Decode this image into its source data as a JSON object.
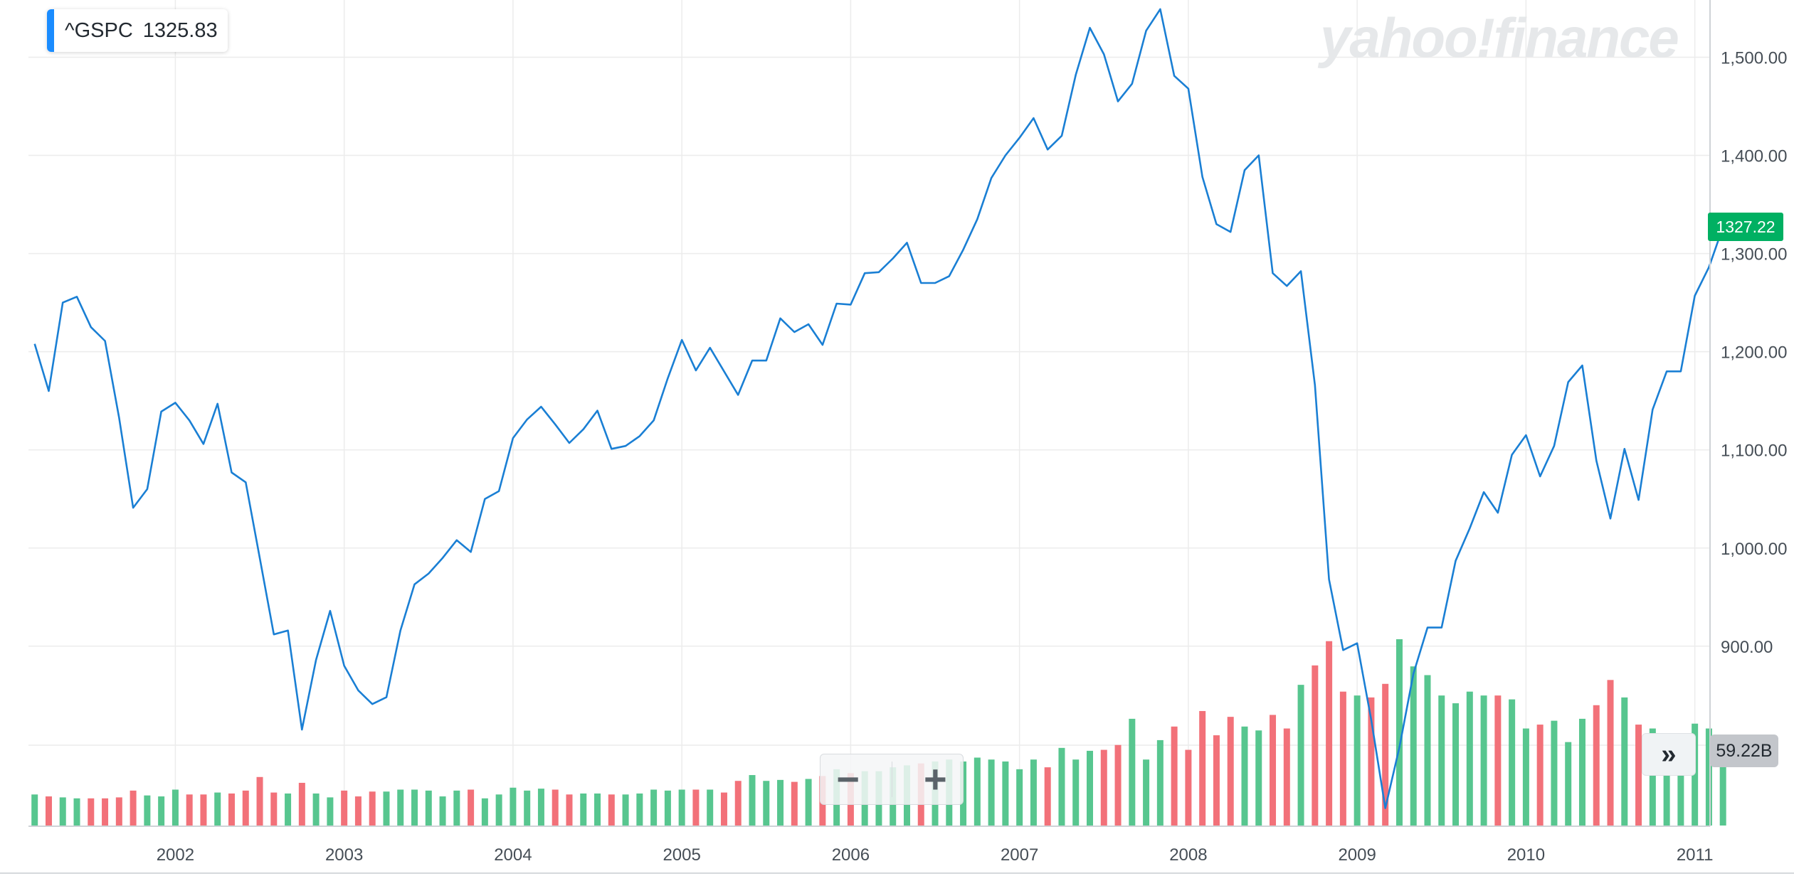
{
  "ticker": {
    "symbol": "^GSPC",
    "price": "1325.83"
  },
  "watermark": "yahoo!finance",
  "last_price_label": "1327.22",
  "volume_label": "59.22B",
  "controls": {
    "zoom_out": "−",
    "zoom_in": "+",
    "expand": "»"
  },
  "colors": {
    "line": "#1a7fd4",
    "volume_up": "#57c68f",
    "volume_down": "#f27179",
    "grid": "#ececec",
    "price_tag": "#00b062"
  },
  "chart_data": {
    "type": "line",
    "ylim": [
      790,
      1555
    ],
    "y_ticks": [
      "1,500.00",
      "1,400.00",
      "1,300.00",
      "1,200.00",
      "1,100.00",
      "1,000.00",
      "900.00"
    ],
    "y_tick_values": [
      1500,
      1400,
      1300,
      1200,
      1100,
      1000,
      900
    ],
    "x_tick_labels": [
      "2002",
      "2003",
      "2004",
      "2005",
      "2006",
      "2007",
      "2008",
      "2009",
      "2010",
      "2011"
    ],
    "x_tick_values": [
      2002,
      2003,
      2004,
      2005,
      2006,
      2007,
      2008,
      2009,
      2010,
      2011
    ],
    "xlim": [
      2001.13,
      2011.09
    ],
    "start_month": "2001-03",
    "series": [
      {
        "values": [
          1208,
          1160,
          1250,
          1256,
          1225,
          1211,
          1133,
          1041,
          1060,
          1139,
          1148,
          1130,
          1106,
          1147,
          1077,
          1067,
          990,
          912,
          916,
          815,
          886,
          936,
          880,
          855,
          841,
          848,
          916,
          963,
          974,
          990,
          1008,
          996,
          1050,
          1058,
          1112,
          1131,
          1144,
          1126,
          1107,
          1121,
          1140,
          1101,
          1104,
          1114,
          1130,
          1173,
          1212,
          1181,
          1204,
          1180,
          1156,
          1191,
          1191,
          1234,
          1220,
          1228,
          1207,
          1249,
          1248,
          1280,
          1281,
          1295,
          1311,
          1270,
          1270,
          1277,
          1304,
          1335,
          1377,
          1400,
          1418,
          1438,
          1406,
          1420,
          1482,
          1530,
          1503,
          1455,
          1473,
          1527,
          1549,
          1481,
          1468,
          1378,
          1330,
          1322,
          1385,
          1400,
          1280,
          1267,
          1282,
          1166,
          968,
          896,
          903,
          825,
          735,
          797,
          872,
          919,
          919,
          987,
          1020,
          1057,
          1036,
          1095,
          1115,
          1073,
          1104,
          1169,
          1186,
          1089,
          1030,
          1101,
          1049,
          1141,
          1180,
          1180,
          1257,
          1286,
          1327
        ]
      }
    ],
    "volume": {
      "values": [
        32,
        30,
        29,
        28,
        28,
        28,
        29,
        36,
        31,
        30,
        37,
        32,
        32,
        34,
        33,
        36,
        50,
        34,
        33,
        44,
        33,
        29,
        36,
        30,
        35,
        35,
        37,
        37,
        36,
        30,
        36,
        37,
        28,
        32,
        39,
        36,
        38,
        37,
        32,
        33,
        33,
        32,
        32,
        33,
        37,
        36,
        37,
        37,
        37,
        34,
        46,
        52,
        46,
        47,
        45,
        48,
        51,
        58,
        54,
        56,
        56,
        60,
        62,
        64,
        66,
        68,
        66,
        70,
        68,
        66,
        58,
        68,
        60,
        80,
        68,
        77,
        78,
        83,
        110,
        68,
        88,
        102,
        78,
        118,
        93,
        112,
        102,
        98,
        114,
        100,
        145,
        165,
        190,
        138,
        134,
        132,
        146,
        192,
        164,
        155,
        134,
        126,
        138,
        134,
        134,
        130,
        100,
        104,
        108,
        86,
        110,
        124,
        150,
        132,
        104,
        100,
        92,
        90,
        105,
        100,
        74
      ]
    }
  }
}
